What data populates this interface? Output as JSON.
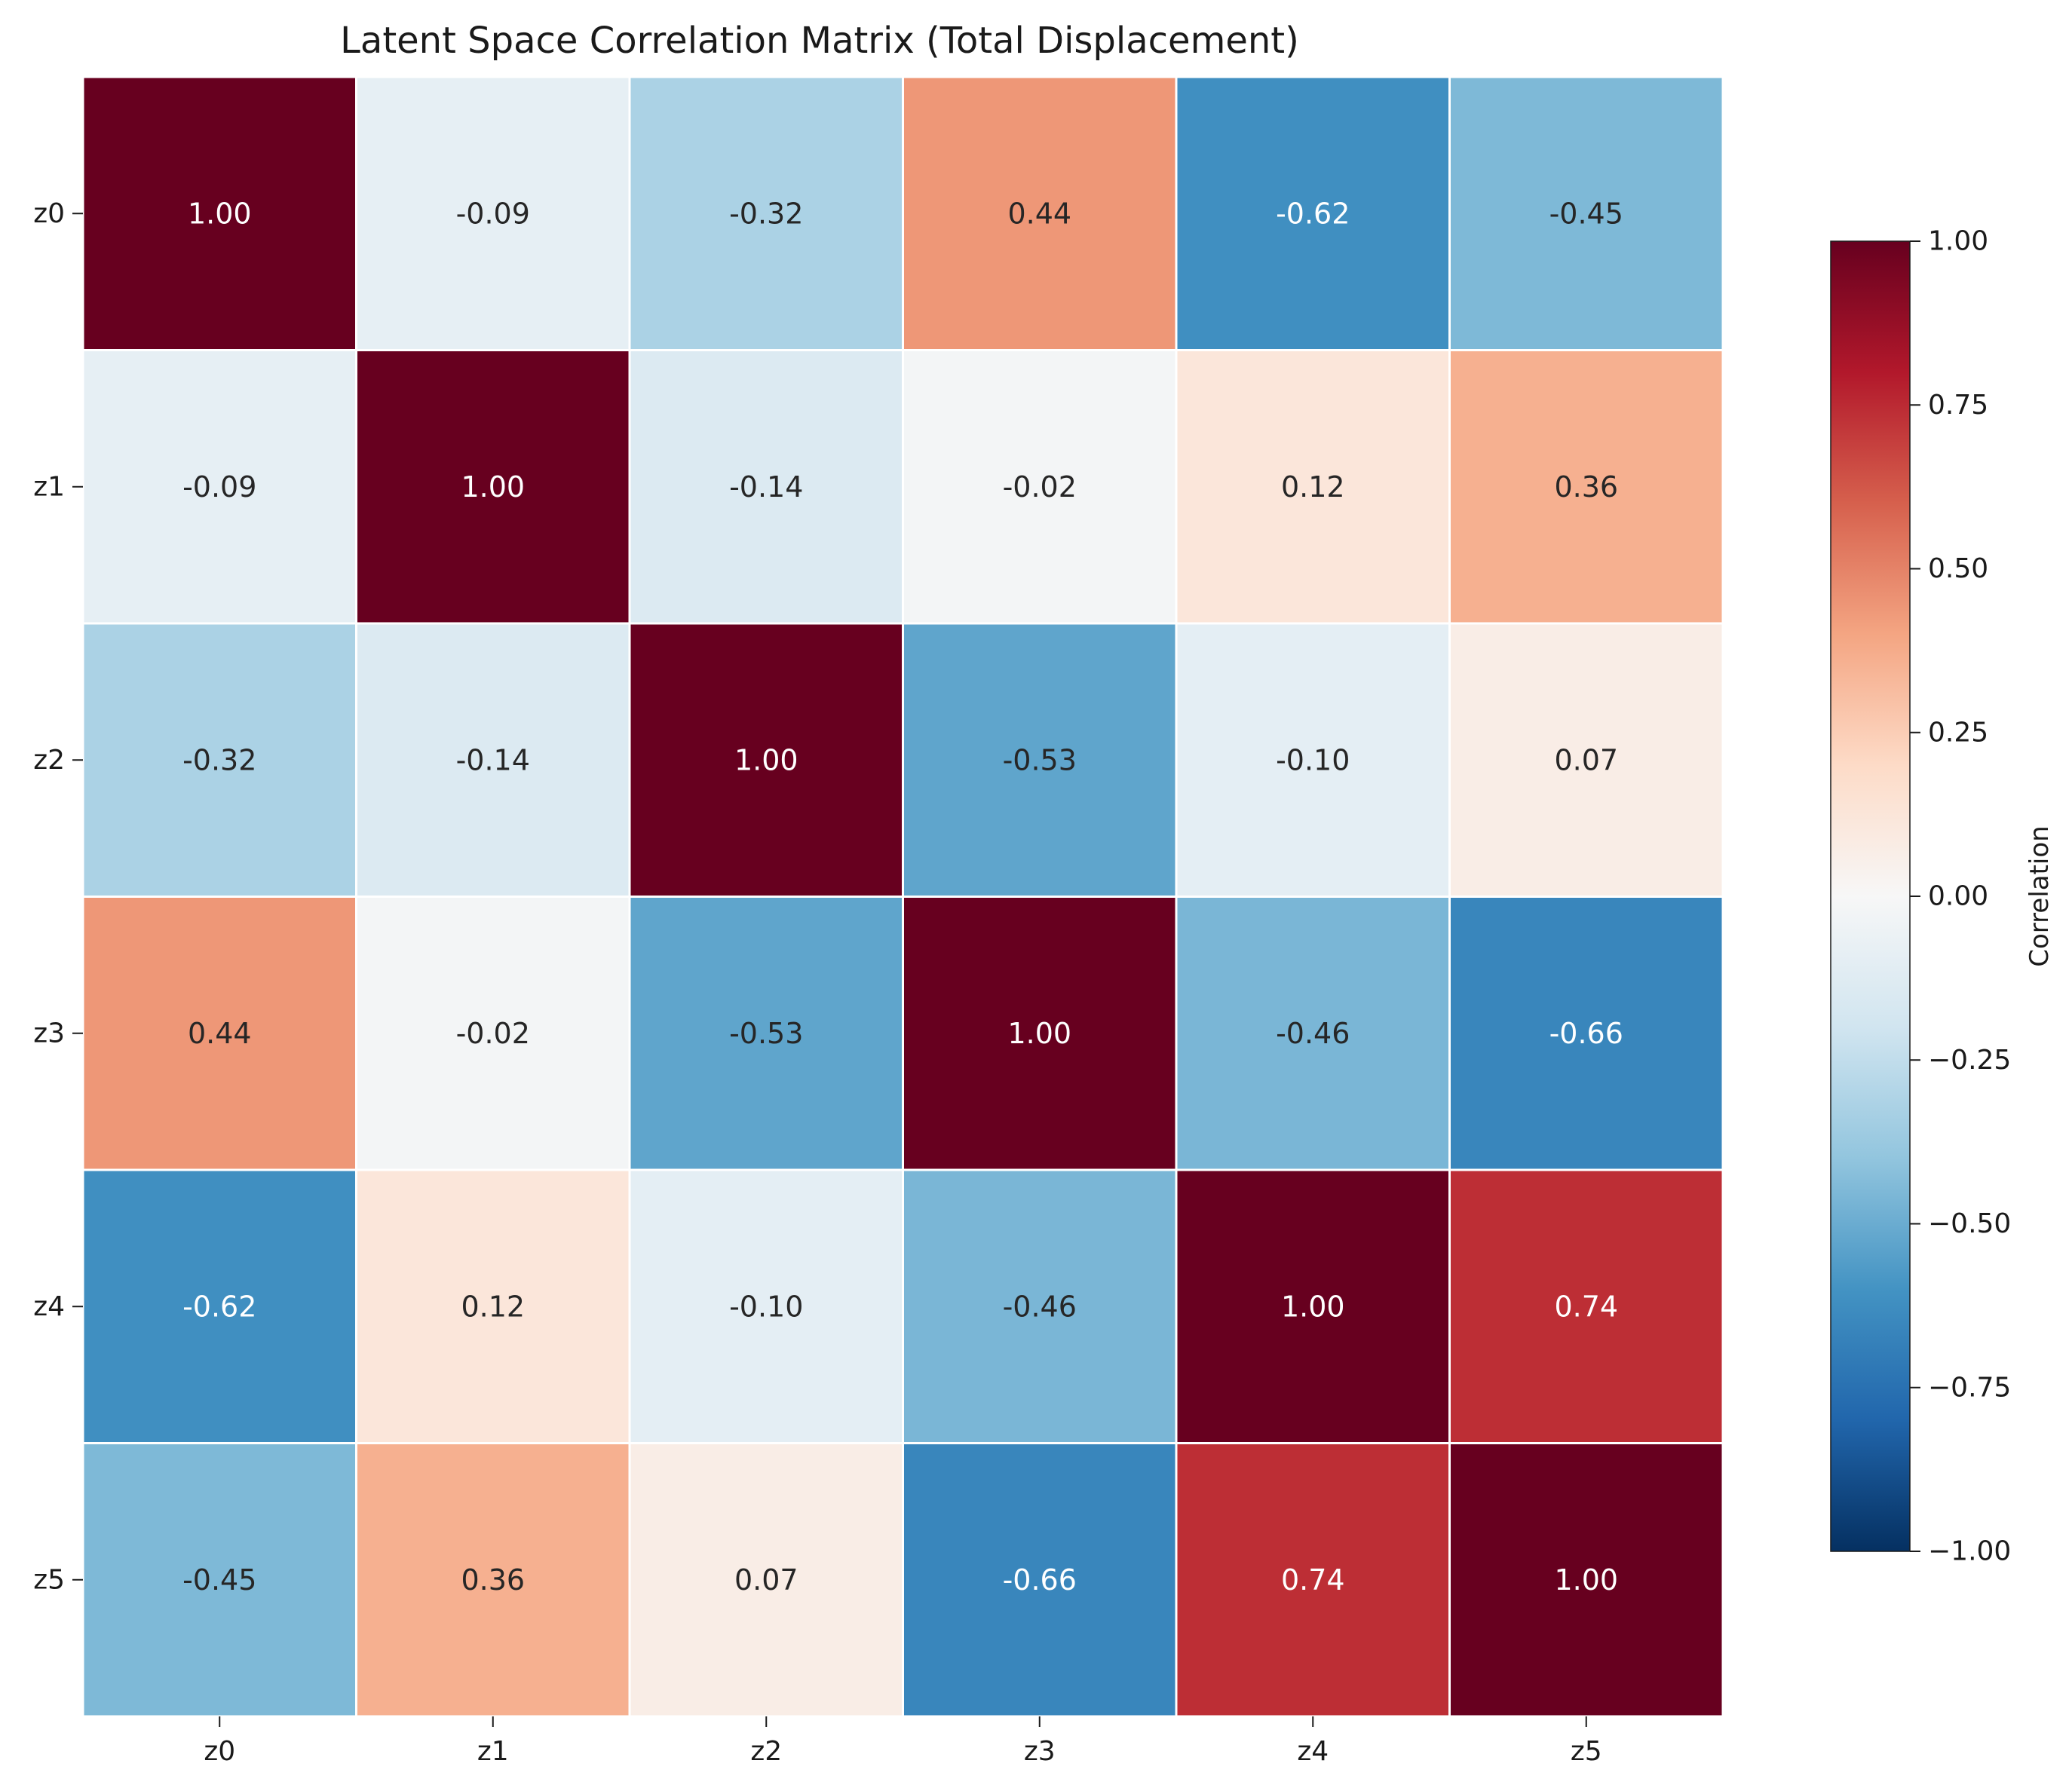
{
  "chart_data": {
    "type": "heatmap",
    "title": "Latent Space Correlation Matrix (Total Displacement)",
    "x_labels": [
      "z0",
      "z1",
      "z2",
      "z3",
      "z4",
      "z5"
    ],
    "y_labels": [
      "z0",
      "z1",
      "z2",
      "z3",
      "z4",
      "z5"
    ],
    "values": [
      [
        1.0,
        -0.09,
        -0.32,
        0.44,
        -0.62,
        -0.45
      ],
      [
        -0.09,
        1.0,
        -0.14,
        -0.02,
        0.12,
        0.36
      ],
      [
        -0.32,
        -0.14,
        1.0,
        -0.53,
        -0.1,
        0.07
      ],
      [
        0.44,
        -0.02,
        -0.53,
        1.0,
        -0.46,
        -0.66
      ],
      [
        -0.62,
        0.12,
        -0.1,
        -0.46,
        1.0,
        0.74
      ],
      [
        -0.45,
        0.36,
        0.07,
        -0.66,
        0.74,
        1.0
      ]
    ],
    "value_format": "2 decimals",
    "colormap": "RdBu_r",
    "vmin": -1.0,
    "vmax": 1.0,
    "colorbar": {
      "label": "Correlation",
      "ticks": [
        1.0,
        0.75,
        0.5,
        0.25,
        0.0,
        -0.25,
        -0.5,
        -0.75,
        -1.0
      ],
      "tick_labels": [
        "1.00",
        "0.75",
        "0.50",
        "0.25",
        "0.00",
        "−0.25",
        "−0.50",
        "−0.75",
        "−1.00"
      ],
      "position": "right"
    },
    "grid": true,
    "legend": "none"
  }
}
